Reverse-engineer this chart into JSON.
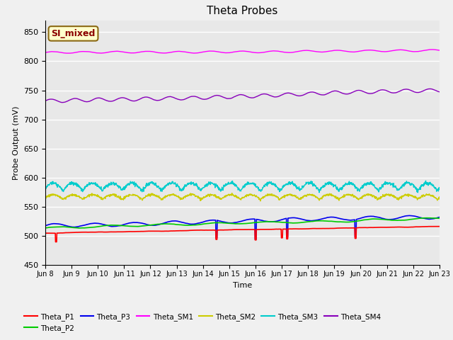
{
  "title": "Theta Probes",
  "xlabel": "Time",
  "ylabel": "Probe Output (mV)",
  "ylim": [
    450,
    870
  ],
  "yticks": [
    450,
    500,
    550,
    600,
    650,
    700,
    750,
    800,
    850
  ],
  "xtick_labels": [
    "Jun 8",
    "Jun 9",
    "Jun 10",
    "Jun 11",
    "Jun 12",
    "Jun 13",
    "Jun 14",
    "Jun 15",
    "Jun 16",
    "Jun 17",
    "Jun 18",
    "Jun 19",
    "Jun 20",
    "Jun 21",
    "Jun 22",
    "Jun 23"
  ],
  "background_color": "#e8e8e8",
  "plot_bg": "#e8e8e8",
  "annotation_text": "SI_mixed",
  "annotation_color": "#8B0000",
  "annotation_bg": "#ffffcc",
  "annotation_border": "#8B6914",
  "series": {
    "Theta_P1": {
      "color": "#ff0000"
    },
    "Theta_P2": {
      "color": "#00cc00"
    },
    "Theta_P3": {
      "color": "#0000ee"
    },
    "Theta_SM1": {
      "color": "#ff00ff"
    },
    "Theta_SM2": {
      "color": "#cccc00"
    },
    "Theta_SM3": {
      "color": "#00cccc"
    },
    "Theta_SM4": {
      "color": "#8800bb"
    }
  }
}
